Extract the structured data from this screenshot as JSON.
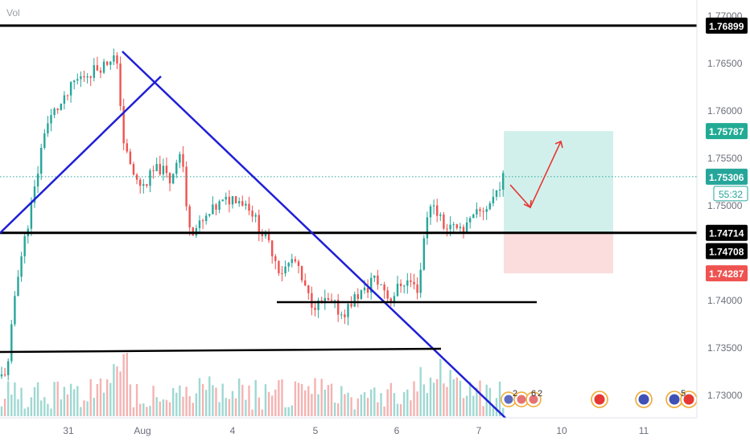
{
  "indicator_label": "Vol",
  "chart_data": {
    "type": "candlestick",
    "y_axis": {
      "range": [
        1.7275,
        1.7705
      ],
      "ticks": [
        "1.73000",
        "1.73500",
        "1.74000",
        "1.74500",
        "1.75000",
        "1.75500",
        "1.76000",
        "1.76500",
        "1.77000"
      ]
    },
    "x_axis": {
      "ticks": [
        "31",
        "Aug",
        "4",
        "5",
        "6",
        "7",
        "10",
        "11"
      ]
    },
    "price_badges": [
      {
        "value": 1.76899,
        "label": "1.76899",
        "color": "#000000",
        "text_color": "#ffffff"
      },
      {
        "value": 1.75787,
        "label": "1.75787",
        "color": "#22ab94",
        "text_color": "#ffffff"
      },
      {
        "value": 1.75306,
        "label": "1.75306",
        "color": "#26a69a",
        "text_color": "#ffffff"
      },
      {
        "value": 1.74714,
        "label": "1.74714",
        "color": "#000000",
        "text_color": "#ffffff"
      },
      {
        "value": 1.74708,
        "label": "1.74708",
        "color": "#000000",
        "text_color": "#ffffff"
      },
      {
        "value": 1.74287,
        "label": "1.74287",
        "color": "#ef5350",
        "text_color": "#ffffff"
      }
    ],
    "countdown": "55:32",
    "current_price": 1.75306,
    "position": {
      "entry": 1.74714,
      "target": 1.75787,
      "stop": 1.74287
    },
    "horizontal_levels": [
      1.76899,
      1.74714
    ],
    "event_markers": [
      {
        "label": "2"
      },
      {
        "label": "6"
      },
      {
        "label": "2"
      },
      {
        "label": "5"
      }
    ],
    "colors": {
      "up": "#26a69a",
      "down": "#ef5350",
      "trendline": "#1f1fd6",
      "level": "#000000",
      "arrow": "#e53935"
    }
  }
}
